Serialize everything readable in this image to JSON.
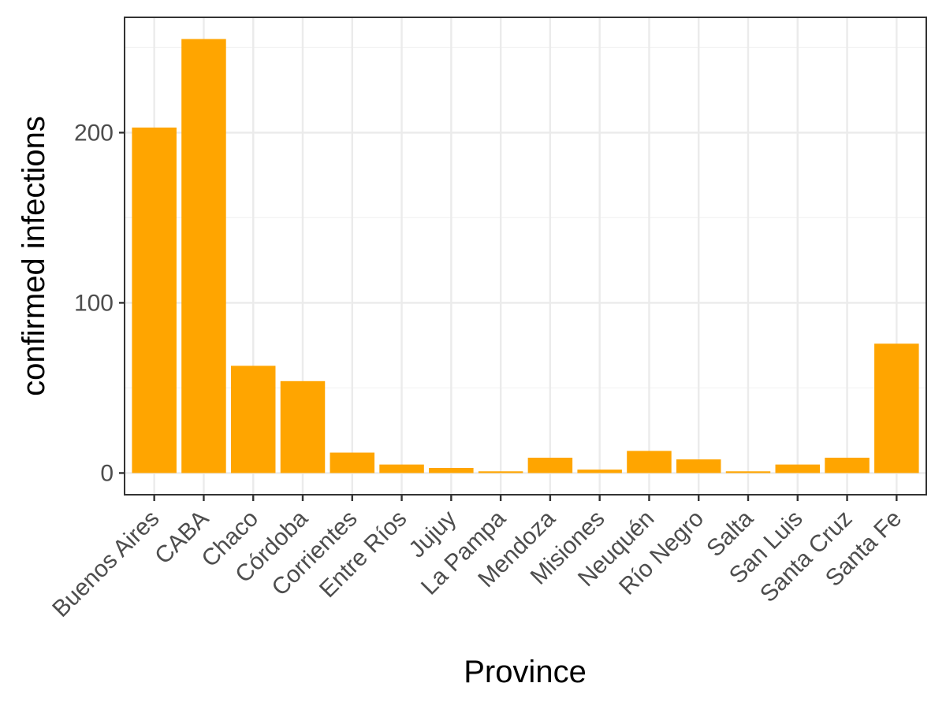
{
  "chart_data": {
    "type": "bar",
    "xlabel": "Province",
    "ylabel": "confirmed infections",
    "categories": [
      "Buenos Aires",
      "CABA",
      "Chaco",
      "Córdoba",
      "Corrientes",
      "Entre Ríos",
      "Jujuy",
      "La Pampa",
      "Mendoza",
      "Misiones",
      "Neuquén",
      "Río Negro",
      "Salta",
      "San Luis",
      "Santa Cruz",
      "Santa Fe"
    ],
    "values": [
      203,
      255,
      63,
      54,
      12,
      5,
      3,
      1,
      9,
      2,
      13,
      8,
      1,
      5,
      9,
      76
    ],
    "ylim": [
      -12.75,
      267.75
    ],
    "yticks": [
      0,
      100,
      200
    ],
    "ytick_labels": [
      "0",
      "100",
      "200"
    ],
    "grid": true,
    "colors": {
      "bar": "#FFA500",
      "panel": "#FFFFFF",
      "grid": "#EBEBEB",
      "frame": "#333333"
    }
  }
}
